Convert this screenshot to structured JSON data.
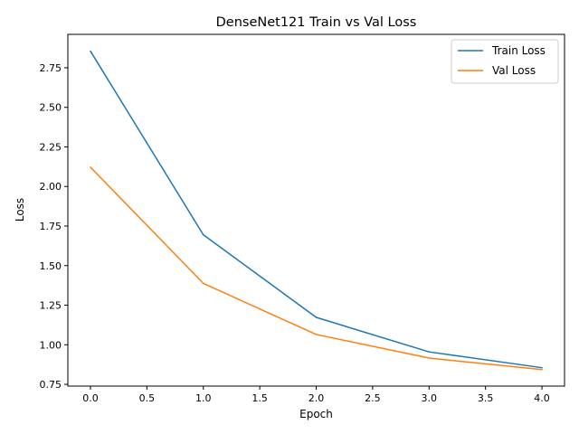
{
  "chart_data": {
    "type": "line",
    "title": "DenseNet121 Train vs Val Loss",
    "xlabel": "Epoch",
    "ylabel": "Loss",
    "x": [
      0,
      1,
      2,
      3,
      4
    ],
    "series": [
      {
        "name": "Train Loss",
        "color": "#1f77b4",
        "values": [
          2.855,
          1.695,
          1.173,
          0.955,
          0.855
        ]
      },
      {
        "name": "Val Loss",
        "color": "#ff7f0e",
        "values": [
          2.122,
          1.388,
          1.065,
          0.916,
          0.843
        ]
      }
    ],
    "xlim": [
      -0.2,
      4.2
    ],
    "ylim": [
      0.739,
      2.961
    ],
    "x_ticks": [
      "0.0",
      "0.5",
      "1.0",
      "1.5",
      "2.0",
      "2.5",
      "3.0",
      "3.5",
      "4.0"
    ],
    "y_ticks": [
      "0.75",
      "1.00",
      "1.25",
      "1.50",
      "1.75",
      "2.00",
      "2.25",
      "2.50",
      "2.75"
    ],
    "grid": false,
    "legend_position": "top-right"
  }
}
